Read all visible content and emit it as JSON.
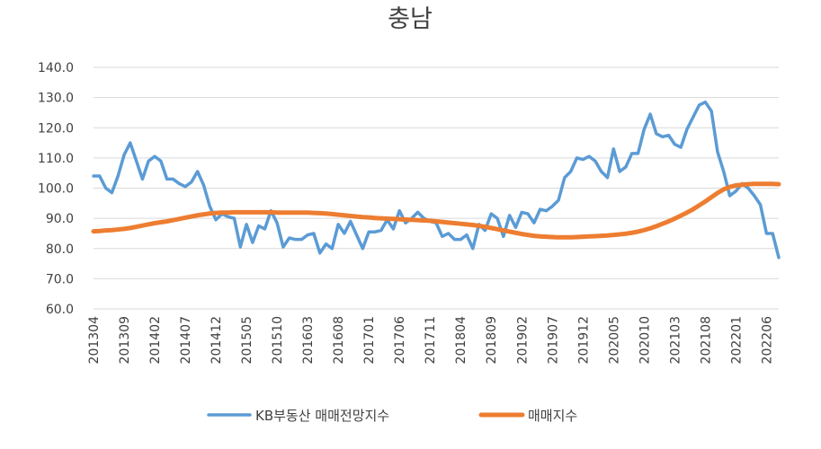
{
  "chart_data": {
    "type": "line",
    "title": "충남",
    "xlabel": "",
    "ylabel": "",
    "ylim": [
      60,
      140
    ],
    "yticks": [
      "60.0",
      "70.0",
      "80.0",
      "90.0",
      "100.0",
      "110.0",
      "120.0",
      "130.0",
      "140.0"
    ],
    "grid": true,
    "legend_position": "bottom",
    "x_start": "201304",
    "x_end": "202210",
    "xtick_labels": [
      "201304",
      "201309",
      "201402",
      "201407",
      "201412",
      "201505",
      "201510",
      "201603",
      "201608",
      "201701",
      "201706",
      "201711",
      "201804",
      "201809",
      "201902",
      "201907",
      "201912",
      "202005",
      "202010",
      "202103",
      "202108",
      "202201",
      "202206"
    ],
    "series": [
      {
        "name": "KB부동산 매매전망지수",
        "color": "#5B9BD5",
        "values": [
          104.0,
          104.0,
          100.0,
          98.5,
          104.0,
          111.0,
          115.0,
          109.0,
          103.0,
          109.0,
          110.5,
          109.0,
          103.0,
          103.0,
          101.5,
          100.5,
          102.0,
          105.5,
          101.0,
          94.0,
          89.5,
          91.5,
          90.5,
          90.0,
          80.5,
          88.0,
          82.0,
          87.5,
          86.5,
          92.5,
          88.5,
          80.5,
          83.5,
          83.0,
          83.0,
          84.5,
          85.0,
          78.5,
          81.5,
          80.0,
          88.0,
          85.0,
          89.0,
          84.5,
          80.0,
          85.5,
          85.5,
          86.0,
          89.5,
          86.5,
          92.5,
          88.5,
          90.0,
          92.0,
          90.0,
          89.0,
          88.5,
          84.0,
          85.0,
          83.0,
          83.0,
          84.5,
          80.0,
          88.0,
          86.0,
          91.5,
          90.0,
          84.0,
          91.0,
          87.0,
          92.0,
          91.5,
          88.5,
          93.0,
          92.5,
          94.0,
          96.0,
          103.5,
          105.5,
          110.0,
          109.5,
          110.5,
          109.0,
          105.5,
          103.5,
          113.0,
          105.5,
          107.0,
          111.5,
          111.5,
          119.5,
          124.5,
          118.0,
          117.0,
          117.5,
          114.5,
          113.5,
          119.5,
          123.5,
          127.5,
          128.5,
          125.5,
          112.0,
          105.5,
          97.5,
          99.0,
          101.5,
          100.0,
          97.5,
          94.5,
          85.0,
          85.0,
          77.0
        ]
      },
      {
        "name": "매매지수",
        "color": "#ED7D31",
        "values": [
          85.7,
          85.8,
          86.0,
          86.1,
          86.3,
          86.5,
          86.8,
          87.2,
          87.6,
          88.0,
          88.4,
          88.7,
          89.0,
          89.4,
          89.8,
          90.2,
          90.6,
          91.0,
          91.3,
          91.6,
          91.8,
          91.9,
          91.9,
          92.0,
          92.0,
          92.0,
          92.0,
          92.0,
          92.0,
          92.0,
          91.9,
          91.9,
          91.9,
          91.9,
          91.9,
          91.9,
          91.8,
          91.7,
          91.6,
          91.4,
          91.2,
          91.0,
          90.8,
          90.6,
          90.4,
          90.3,
          90.1,
          90.0,
          89.9,
          89.8,
          89.7,
          89.6,
          89.5,
          89.4,
          89.3,
          89.2,
          89.0,
          88.8,
          88.6,
          88.4,
          88.2,
          88.0,
          87.8,
          87.5,
          87.2,
          86.8,
          86.4,
          86.0,
          85.6,
          85.2,
          84.8,
          84.5,
          84.2,
          84.0,
          83.9,
          83.8,
          83.7,
          83.7,
          83.7,
          83.8,
          83.9,
          84.0,
          84.1,
          84.2,
          84.3,
          84.5,
          84.7,
          84.9,
          85.2,
          85.6,
          86.1,
          86.7,
          87.4,
          88.2,
          89.0,
          89.9,
          90.9,
          91.9,
          93.0,
          94.3,
          95.6,
          97.0,
          98.4,
          99.6,
          100.4,
          100.9,
          101.1,
          101.3,
          101.4,
          101.4,
          101.4,
          101.4,
          101.3
        ]
      }
    ]
  }
}
